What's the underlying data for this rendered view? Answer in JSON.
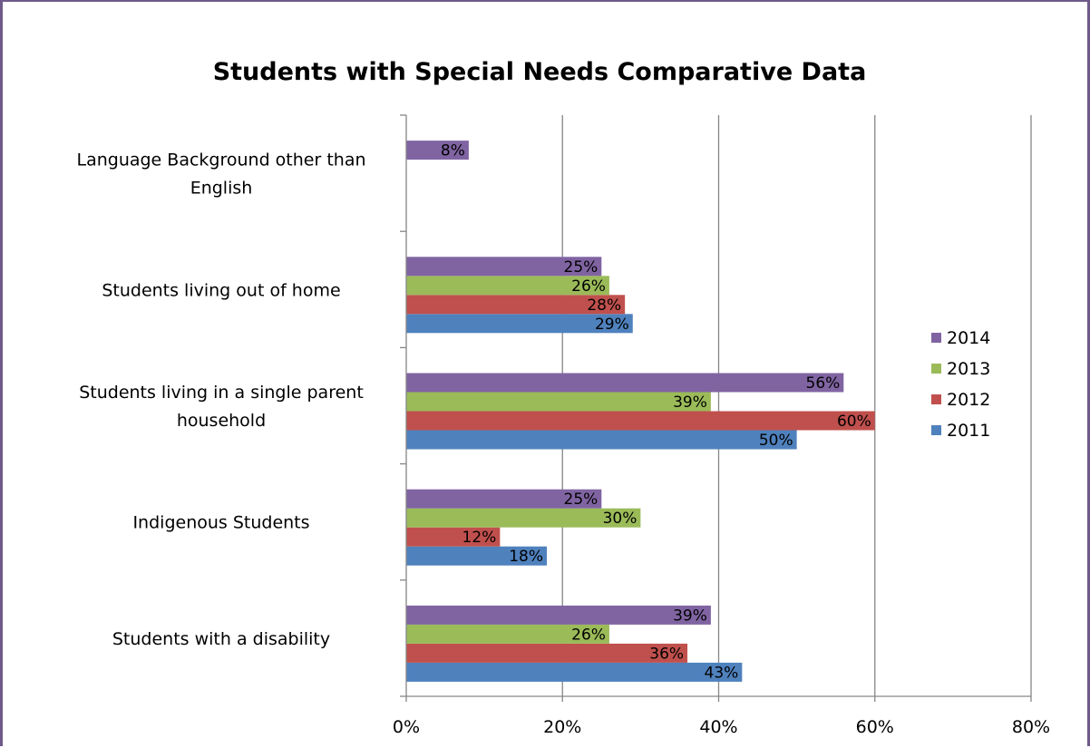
{
  "chart_data": {
    "type": "bar",
    "orientation": "horizontal",
    "title": "Students with Special Needs Comparative Data",
    "xlabel": "",
    "ylabel": "",
    "categories": [
      "Students with a disability",
      "Indigenous Students",
      "Students living in a single parent household",
      "Students living out of home",
      "Language Background other than English"
    ],
    "series": [
      {
        "name": "2011",
        "color": "#4f81bd",
        "values": [
          43,
          18,
          50,
          29,
          null
        ]
      },
      {
        "name": "2012",
        "color": "#c0504d",
        "values": [
          36,
          12,
          60,
          28,
          null
        ]
      },
      {
        "name": "2013",
        "color": "#9bbb59",
        "values": [
          26,
          30,
          39,
          26,
          null
        ]
      },
      {
        "name": "2014",
        "color": "#8064a2",
        "values": [
          39,
          25,
          56,
          25,
          8
        ]
      }
    ],
    "xlim": [
      0,
      80
    ],
    "xticks": [
      0,
      20,
      40,
      60,
      80
    ],
    "tick_format": "%",
    "grid": true,
    "legend_position": "right",
    "legend_order": [
      "2014",
      "2013",
      "2012",
      "2011"
    ]
  }
}
